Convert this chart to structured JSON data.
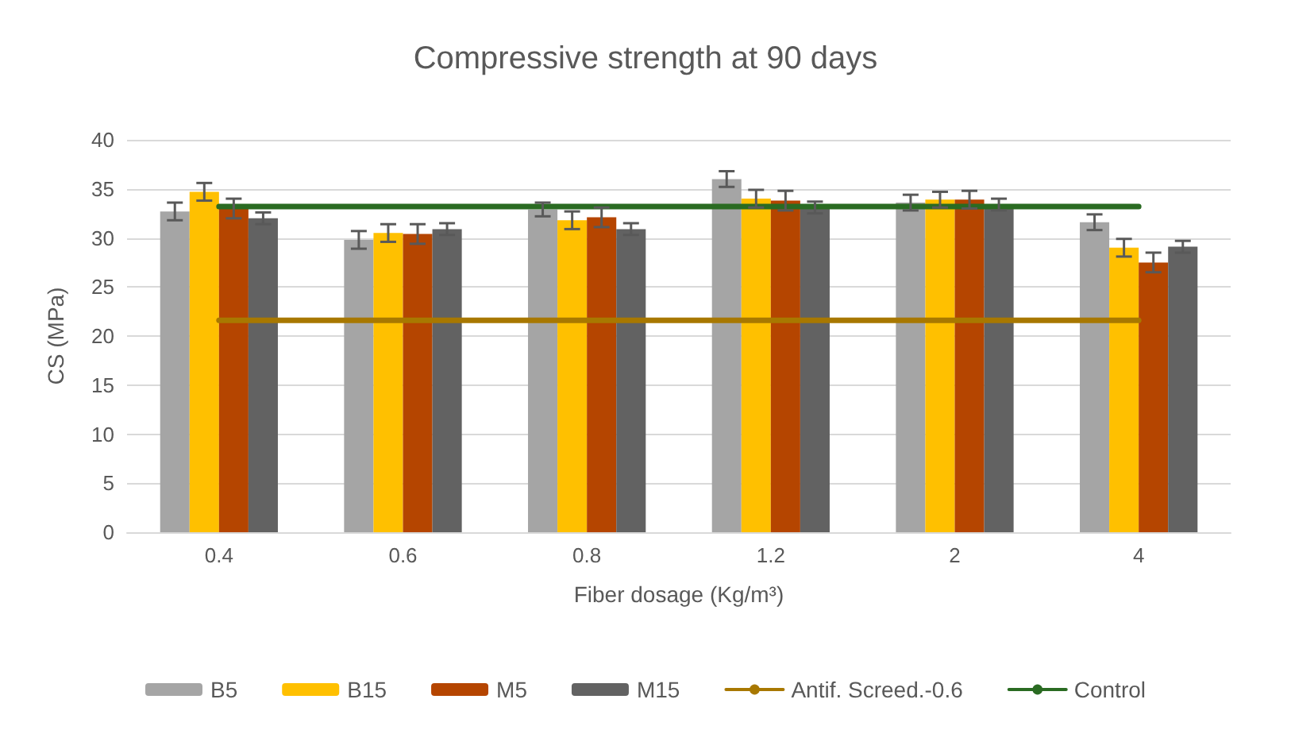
{
  "chart_data": {
    "type": "bar",
    "title": "Compressive strength at 90 days",
    "xlabel": "Fiber dosage (Kg/m³)",
    "ylabel": "CS (MPa)",
    "categories": [
      "0.4",
      "0.6",
      "0.8",
      "1.2",
      "2",
      "4"
    ],
    "series": [
      {
        "name": "B5",
        "color": "#a5a5a5",
        "values": [
          32.7,
          29.8,
          32.9,
          36.0,
          33.6,
          31.6
        ],
        "errors": [
          0.9,
          0.9,
          0.7,
          0.8,
          0.8,
          0.8
        ]
      },
      {
        "name": "B15",
        "color": "#ffc000",
        "values": [
          34.7,
          30.5,
          31.8,
          34.0,
          33.9,
          29.0
        ],
        "errors": [
          0.9,
          0.9,
          0.9,
          0.9,
          0.8,
          0.9
        ]
      },
      {
        "name": "M5",
        "color": "#b54500",
        "values": [
          33.0,
          30.4,
          32.1,
          33.8,
          33.9,
          27.5
        ],
        "errors": [
          1.0,
          1.0,
          1.0,
          1.0,
          0.9,
          1.0
        ]
      },
      {
        "name": "M15",
        "color": "#626262",
        "values": [
          32.0,
          30.9,
          30.9,
          33.1,
          33.4,
          29.1
        ],
        "errors": [
          0.6,
          0.6,
          0.6,
          0.6,
          0.6,
          0.6
        ]
      },
      {
        "name": "Antif. Screed.-0.6",
        "type": "line",
        "color": "#a87800",
        "values": [
          21.6,
          21.6,
          21.6,
          21.6,
          21.6,
          21.6
        ]
      },
      {
        "name": "Control",
        "type": "line",
        "color": "#2a6b22",
        "values": [
          33.2,
          33.2,
          33.2,
          33.2,
          33.2,
          33.2
        ]
      }
    ],
    "ylim": [
      0,
      40
    ],
    "yticks": [
      0,
      5,
      10,
      15,
      20,
      25,
      30,
      35,
      40
    ],
    "grid": "y",
    "legend": "bottom",
    "marker": "none",
    "line_style": "solid"
  }
}
